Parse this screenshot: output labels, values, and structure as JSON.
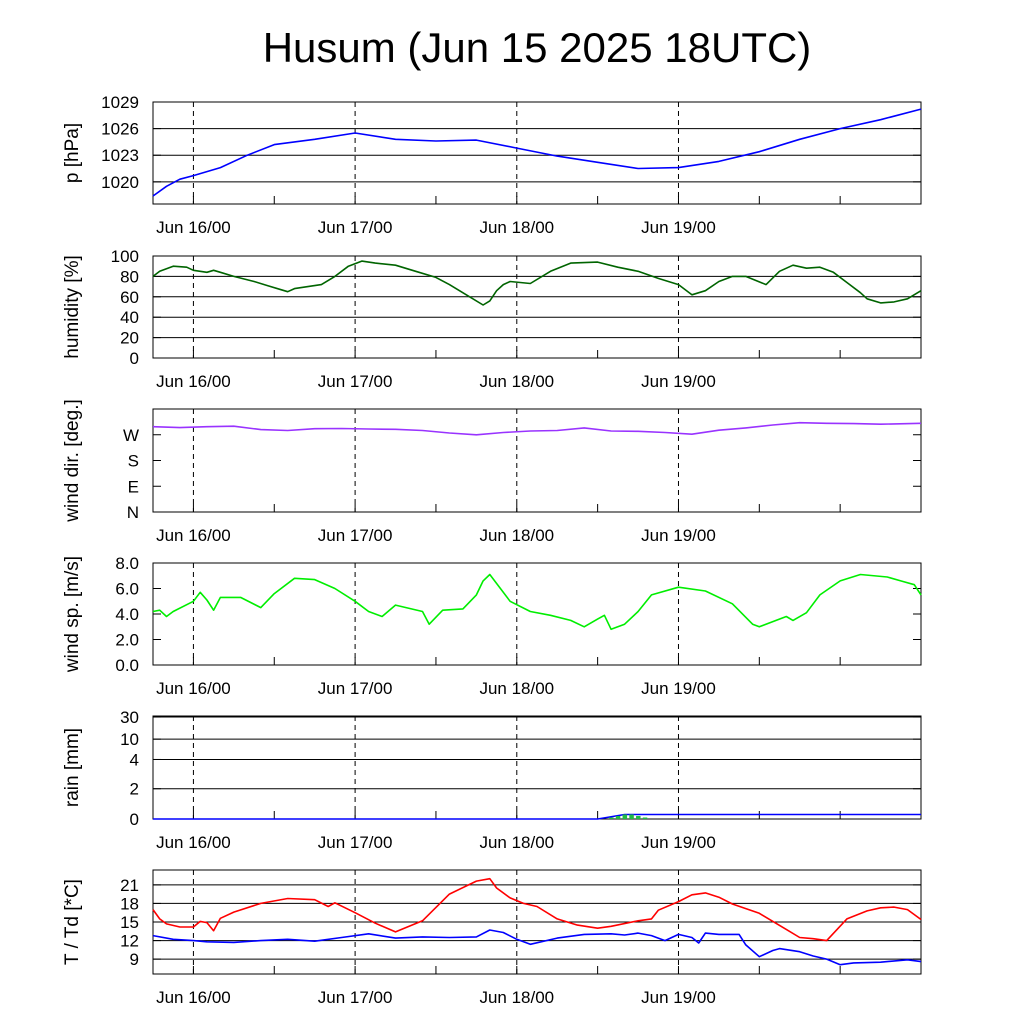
{
  "title": "Husum (Jun 15 2025 18UTC)",
  "x_ticks": [
    "Jun 16/00",
    "Jun 17/00",
    "Jun 18/00",
    "Jun 19/00"
  ],
  "colors": {
    "pressure": "#0000ff",
    "humidity": "#006400",
    "wind_dir": "#9933ff",
    "wind_speed": "#00ee00",
    "rain_total": "#0000ff",
    "rain_bars": "#22bb44",
    "temperature": "#ff0000",
    "dewpoint": "#0000ff"
  },
  "chart_data": [
    {
      "type": "line",
      "ylabel": "p [hPa]",
      "x_unit": "hours after Jun 15 18UTC",
      "yticks": [
        "1029",
        "1026",
        "1023",
        "1020"
      ],
      "series": [
        {
          "color_key": "pressure",
          "x": [
            0,
            2,
            4,
            6,
            10,
            14,
            18,
            24,
            30,
            36,
            42,
            48,
            54,
            60,
            66,
            72,
            78,
            84,
            90,
            96,
            102,
            108,
            114
          ],
          "y": [
            1018.4,
            1019.5,
            1020.3,
            1020.7,
            1021.6,
            1023.0,
            1024.2,
            1024.8,
            1025.5,
            1024.8,
            1024.6,
            1024.7,
            1023.8,
            1022.9,
            1022.2,
            1021.5,
            1021.6,
            1022.3,
            1023.4,
            1024.8,
            1026.0,
            1027.0,
            1028.2
          ]
        }
      ]
    },
    {
      "type": "line",
      "ylabel": "humidity [%]",
      "x_unit": "hours after Jun 15 18UTC",
      "yticks": [
        "100",
        "80",
        "60",
        "40",
        "20",
        "0"
      ],
      "series": [
        {
          "color_key": "humidity",
          "x": [
            0,
            1,
            3,
            5,
            6,
            8,
            9,
            10,
            12,
            15,
            17,
            19,
            20,
            21,
            23,
            25,
            27,
            29,
            31,
            33,
            36,
            39,
            42,
            44,
            47,
            49,
            50,
            51,
            52,
            53,
            56,
            59,
            62,
            66,
            69,
            72,
            75,
            78,
            80,
            82,
            84,
            86,
            88,
            91,
            93,
            95,
            97,
            99,
            101,
            103,
            105,
            106,
            108,
            110,
            112,
            114
          ],
          "y": [
            80,
            85,
            90,
            89,
            86,
            84,
            86,
            84,
            80,
            75,
            71,
            67,
            65,
            68,
            70,
            72,
            80,
            90,
            95,
            93,
            91,
            85,
            79,
            72,
            60,
            52,
            56,
            66,
            72,
            75,
            73,
            85,
            93,
            94,
            89,
            85,
            78,
            72,
            62,
            66,
            75,
            80,
            80,
            72,
            85,
            91,
            88,
            89,
            84,
            74,
            64,
            58,
            54,
            55,
            58,
            66
          ]
        }
      ]
    },
    {
      "type": "line",
      "ylabel": "wind dir. [deg.]",
      "x_unit": "hours after Jun 15 18UTC",
      "yticks": [
        "W",
        "S",
        "E",
        "N"
      ],
      "series": [
        {
          "color_key": "wind_dir",
          "x": [
            0,
            4,
            8,
            12,
            16,
            20,
            24,
            28,
            32,
            36,
            40,
            44,
            48,
            52,
            56,
            60,
            64,
            68,
            72,
            76,
            80,
            84,
            88,
            92,
            96,
            100,
            104,
            108,
            114
          ],
          "y": [
            298,
            295,
            298,
            300,
            288,
            285,
            291,
            292,
            290,
            289,
            285,
            276,
            270,
            278,
            283,
            285,
            294,
            283,
            282,
            278,
            272,
            286,
            294,
            304,
            312,
            310,
            309,
            307,
            310
          ]
        }
      ]
    },
    {
      "type": "line",
      "ylabel": "wind sp. [m/s]",
      "x_unit": "hours after Jun 15 18UTC",
      "yticks": [
        "8.0",
        "6.0",
        "4.0",
        "2.0",
        "0.0"
      ],
      "series": [
        {
          "color_key": "wind_speed",
          "x": [
            0,
            1,
            2,
            3,
            6,
            7,
            8,
            9,
            10,
            13,
            16,
            18,
            21,
            24,
            27,
            30,
            32,
            34,
            36,
            40,
            41,
            43,
            46,
            48,
            49,
            50,
            53,
            56,
            59,
            62,
            64,
            66,
            67,
            68,
            70,
            72,
            74,
            78,
            82,
            86,
            89,
            90,
            94,
            95,
            97,
            99,
            102,
            105,
            109,
            111,
            113,
            114
          ],
          "y": [
            4.2,
            4.3,
            3.8,
            4.2,
            5.0,
            5.7,
            5.1,
            4.3,
            5.3,
            5.3,
            4.5,
            5.6,
            6.8,
            6.7,
            6.0,
            5.0,
            4.2,
            3.8,
            4.7,
            4.2,
            3.2,
            4.3,
            4.4,
            5.5,
            6.6,
            7.1,
            5.0,
            4.2,
            3.9,
            3.5,
            3.0,
            3.6,
            3.9,
            2.8,
            3.2,
            4.2,
            5.5,
            6.1,
            5.8,
            4.8,
            3.2,
            3.0,
            3.8,
            3.5,
            4.1,
            5.5,
            6.6,
            7.1,
            6.9,
            6.6,
            6.3,
            5.5
          ]
        }
      ]
    },
    {
      "type": "area",
      "ylabel": "rain [mm]",
      "x_unit": "hours after Jun 15 18UTC",
      "yticks": [
        "30",
        "10",
        "4",
        "2",
        "0"
      ],
      "series": [
        {
          "color_key": "rain_total",
          "x": [
            0,
            66,
            70,
            114
          ],
          "y": [
            0,
            0,
            0.3,
            0.3
          ]
        },
        {
          "color_key": "rain_bars",
          "bars": [
            [
              68,
              0.1
            ],
            [
              69,
              0.2
            ],
            [
              70,
              0.3
            ],
            [
              71,
              0.3
            ],
            [
              72,
              0.2
            ],
            [
              73,
              0.1
            ]
          ]
        }
      ]
    },
    {
      "type": "line",
      "ylabel": "T / Td [*C]",
      "x_unit": "hours after Jun 15 18UTC",
      "yticks": [
        "21",
        "18",
        "15",
        "12",
        "9"
      ],
      "series": [
        {
          "color_key": "temperature",
          "x": [
            0,
            1,
            2,
            4,
            6,
            7,
            8,
            9,
            10,
            12,
            16,
            20,
            24,
            26,
            27,
            30,
            33,
            36,
            40,
            44,
            48,
            50,
            51,
            53,
            55,
            57,
            60,
            63,
            66,
            68,
            72,
            74,
            75,
            78,
            80,
            82,
            84,
            86,
            90,
            94,
            96,
            98,
            100,
            103,
            106,
            108,
            110,
            112,
            114
          ],
          "y": [
            17.0,
            15.5,
            14.7,
            14.2,
            14.2,
            15.1,
            14.9,
            13.6,
            15.6,
            16.6,
            18.0,
            18.8,
            18.6,
            17.5,
            18.1,
            16.5,
            14.8,
            13.4,
            15.2,
            19.5,
            21.6,
            22.0,
            20.5,
            18.9,
            18.0,
            17.5,
            15.5,
            14.5,
            14.0,
            14.3,
            15.2,
            15.5,
            16.9,
            18.3,
            19.4,
            19.7,
            19.0,
            17.9,
            16.4,
            13.8,
            12.5,
            12.3,
            12.0,
            15.5,
            16.8,
            17.3,
            17.4,
            17.0,
            15.4
          ]
        },
        {
          "color_key": "dewpoint",
          "x": [
            0,
            3,
            6,
            8,
            12,
            16,
            20,
            24,
            28,
            32,
            36,
            40,
            44,
            48,
            50,
            52,
            54,
            56,
            60,
            64,
            68,
            70,
            72,
            74,
            76,
            78,
            80,
            81,
            82,
            84,
            87,
            88,
            90,
            92,
            93,
            96,
            98,
            100,
            102,
            104,
            108,
            112,
            114
          ],
          "y": [
            12.8,
            12.2,
            12.0,
            11.8,
            11.7,
            12.0,
            12.2,
            11.9,
            12.5,
            13.1,
            12.4,
            12.6,
            12.5,
            12.6,
            13.7,
            13.3,
            12.2,
            11.4,
            12.4,
            13.0,
            13.1,
            12.9,
            13.2,
            12.8,
            12.0,
            13.0,
            12.5,
            11.6,
            13.2,
            13.0,
            13.0,
            11.3,
            9.4,
            10.4,
            10.7,
            10.2,
            9.5,
            9.0,
            8.1,
            8.4,
            8.5,
            8.9,
            8.6
          ]
        }
      ]
    }
  ]
}
